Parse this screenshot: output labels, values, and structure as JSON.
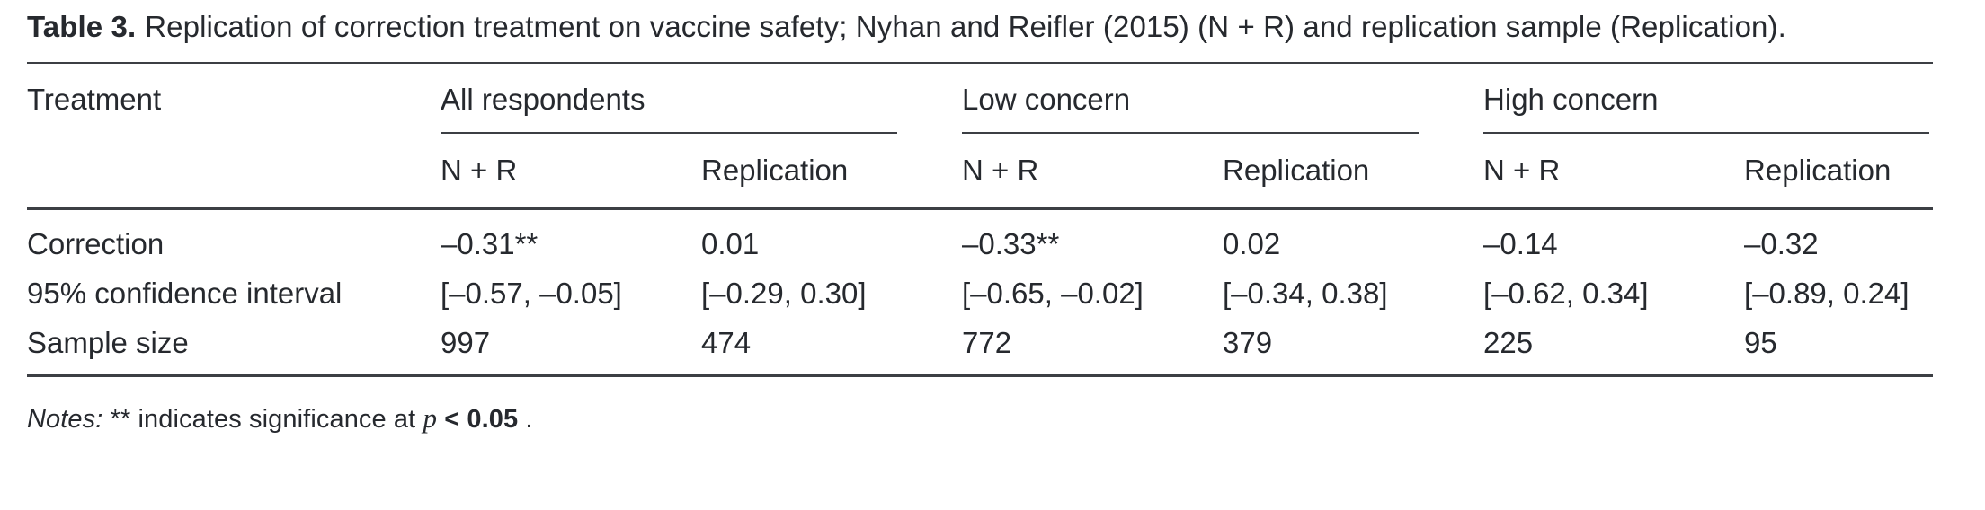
{
  "title": {
    "label": "Table 3.",
    "text": "Replication of correction treatment on vaccine safety; Nyhan and Reifler (2015) (N + R) and replication sample (Replication)."
  },
  "table": {
    "left_header": "Treatment",
    "groups": [
      {
        "label": "All respondents"
      },
      {
        "label": "Low concern"
      },
      {
        "label": "High concern"
      }
    ],
    "subheaders": [
      "N + R",
      "Replication",
      "N + R",
      "Replication",
      "N + R",
      "Replication"
    ],
    "rows": [
      {
        "label": "Correction",
        "cells": [
          "–0.31**",
          "0.01",
          "–0.33**",
          "0.02",
          "–0.14",
          "–0.32"
        ]
      },
      {
        "label": "95% confidence interval",
        "cells": [
          "[–0.57, –0.05]",
          "[–0.29, 0.30]",
          "[–0.65, –0.02]",
          "[–0.34, 0.38]",
          "[–0.62, 0.34]",
          "[–0.89, 0.24]"
        ]
      },
      {
        "label": "Sample size",
        "cells": [
          "997",
          "474",
          "772",
          "379",
          "225",
          "95"
        ]
      }
    ]
  },
  "notes": {
    "prefix": "Notes:",
    "mid": " ** indicates significance at ",
    "p": "p",
    "value": " < 0.05",
    "suffix": " ."
  },
  "colors": {
    "text": "#26292e",
    "rule": "#3c3f44",
    "background": "#ffffff"
  }
}
